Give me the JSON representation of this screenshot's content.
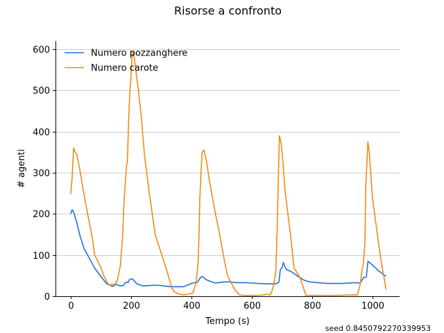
{
  "chart_data": {
    "type": "line",
    "title": "Risorse a confronto",
    "xlabel": "Tempo (s)",
    "ylabel": "# agenti",
    "xlim": [
      -50,
      1090
    ],
    "ylim": [
      0,
      620
    ],
    "xticks": [
      0,
      200,
      400,
      600,
      800,
      1000
    ],
    "yticks": [
      0,
      100,
      200,
      300,
      400,
      500,
      600
    ],
    "grid": "horizontal",
    "legend_position": "top-left",
    "series": [
      {
        "name": "Numero pozzanghere",
        "color": "#1f6fe0",
        "points": [
          [
            0,
            200
          ],
          [
            5,
            210
          ],
          [
            10,
            205
          ],
          [
            20,
            180
          ],
          [
            30,
            150
          ],
          [
            45,
            115
          ],
          [
            60,
            95
          ],
          [
            80,
            68
          ],
          [
            100,
            48
          ],
          [
            120,
            30
          ],
          [
            130,
            27
          ],
          [
            140,
            24
          ],
          [
            150,
            29
          ],
          [
            165,
            25
          ],
          [
            175,
            26
          ],
          [
            180,
            32
          ],
          [
            185,
            34
          ],
          [
            190,
            33
          ],
          [
            195,
            40
          ],
          [
            200,
            42
          ],
          [
            205,
            42
          ],
          [
            210,
            38
          ],
          [
            220,
            30
          ],
          [
            240,
            25
          ],
          [
            260,
            26
          ],
          [
            280,
            27
          ],
          [
            300,
            26
          ],
          [
            320,
            24
          ],
          [
            340,
            23
          ],
          [
            375,
            23
          ],
          [
            390,
            28
          ],
          [
            405,
            32
          ],
          [
            420,
            34
          ],
          [
            430,
            45
          ],
          [
            435,
            48
          ],
          [
            440,
            46
          ],
          [
            450,
            40
          ],
          [
            470,
            34
          ],
          [
            480,
            32
          ],
          [
            500,
            34
          ],
          [
            520,
            35
          ],
          [
            550,
            33
          ],
          [
            580,
            33
          ],
          [
            600,
            32
          ],
          [
            620,
            31
          ],
          [
            660,
            30
          ],
          [
            680,
            30
          ],
          [
            690,
            34
          ],
          [
            695,
            65
          ],
          [
            700,
            68
          ],
          [
            705,
            82
          ],
          [
            710,
            72
          ],
          [
            715,
            65
          ],
          [
            730,
            60
          ],
          [
            750,
            50
          ],
          [
            770,
            40
          ],
          [
            790,
            35
          ],
          [
            820,
            33
          ],
          [
            850,
            31
          ],
          [
            900,
            31
          ],
          [
            940,
            33
          ],
          [
            960,
            32
          ],
          [
            970,
            45
          ],
          [
            980,
            47
          ],
          [
            985,
            85
          ],
          [
            1000,
            76
          ],
          [
            1020,
            62
          ],
          [
            1045,
            48
          ]
        ]
      },
      {
        "name": "Numero carote",
        "color": "#f28a10",
        "points": [
          [
            0,
            248
          ],
          [
            5,
            285
          ],
          [
            10,
            360
          ],
          [
            15,
            350
          ],
          [
            20,
            345
          ],
          [
            30,
            310
          ],
          [
            40,
            265
          ],
          [
            55,
            205
          ],
          [
            70,
            150
          ],
          [
            80,
            100
          ],
          [
            100,
            70
          ],
          [
            110,
            50
          ],
          [
            125,
            28
          ],
          [
            135,
            28
          ],
          [
            145,
            28
          ],
          [
            155,
            38
          ],
          [
            165,
            75
          ],
          [
            172,
            140
          ],
          [
            177,
            230
          ],
          [
            185,
            315
          ],
          [
            188,
            325
          ],
          [
            192,
            420
          ],
          [
            196,
            490
          ],
          [
            200,
            530
          ],
          [
            203,
            575
          ],
          [
            207,
            595
          ],
          [
            210,
            585
          ],
          [
            215,
            555
          ],
          [
            225,
            500
          ],
          [
            235,
            430
          ],
          [
            245,
            340
          ],
          [
            260,
            255
          ],
          [
            280,
            150
          ],
          [
            300,
            105
          ],
          [
            320,
            60
          ],
          [
            335,
            20
          ],
          [
            345,
            10
          ],
          [
            360,
            5
          ],
          [
            375,
            3
          ],
          [
            390,
            5
          ],
          [
            405,
            8
          ],
          [
            415,
            30
          ],
          [
            422,
            75
          ],
          [
            425,
            140
          ],
          [
            428,
            235
          ],
          [
            432,
            300
          ],
          [
            436,
            350
          ],
          [
            442,
            355
          ],
          [
            450,
            330
          ],
          [
            460,
            280
          ],
          [
            470,
            240
          ],
          [
            480,
            200
          ],
          [
            490,
            165
          ],
          [
            500,
            125
          ],
          [
            510,
            85
          ],
          [
            520,
            50
          ],
          [
            530,
            35
          ],
          [
            545,
            15
          ],
          [
            560,
            3
          ],
          [
            580,
            2
          ],
          [
            610,
            2
          ],
          [
            640,
            3
          ],
          [
            650,
            5
          ],
          [
            660,
            3
          ],
          [
            665,
            8
          ],
          [
            672,
            25
          ],
          [
            680,
            60
          ],
          [
            685,
            180
          ],
          [
            688,
            280
          ],
          [
            692,
            390
          ],
          [
            698,
            370
          ],
          [
            703,
            330
          ],
          [
            710,
            260
          ],
          [
            720,
            200
          ],
          [
            730,
            140
          ],
          [
            740,
            70
          ],
          [
            760,
            45
          ],
          [
            780,
            2
          ],
          [
            800,
            2
          ],
          [
            830,
            2
          ],
          [
            880,
            2
          ],
          [
            920,
            3
          ],
          [
            950,
            3
          ],
          [
            960,
            30
          ],
          [
            965,
            60
          ],
          [
            970,
            80
          ],
          [
            975,
            130
          ],
          [
            978,
            270
          ],
          [
            985,
            375
          ],
          [
            990,
            345
          ],
          [
            1000,
            240
          ],
          [
            1010,
            185
          ],
          [
            1020,
            130
          ],
          [
            1030,
            80
          ],
          [
            1045,
            17
          ]
        ]
      }
    ]
  },
  "footer": {
    "seed_text": "seed 0.8450792270339953"
  }
}
